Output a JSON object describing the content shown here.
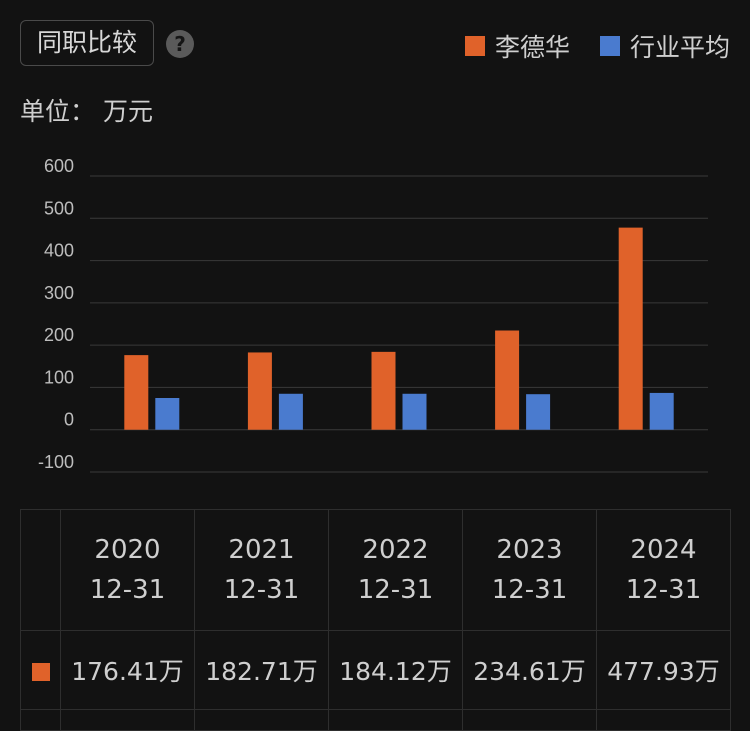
{
  "header": {
    "tab_label": "同职比较",
    "help_icon": "?",
    "legend": [
      {
        "label": "李德华",
        "color": "#e0622a"
      },
      {
        "label": "行业平均",
        "color": "#4a7bcf"
      }
    ]
  },
  "unit_label": "单位：  万元",
  "chart_data": {
    "type": "bar",
    "categories": [
      "2020",
      "2021",
      "2022",
      "2023",
      "2024"
    ],
    "series": [
      {
        "name": "李德华",
        "values": [
          176.41,
          182.71,
          184.12,
          234.61,
          477.93
        ],
        "color": "#e0622a"
      },
      {
        "name": "行业平均",
        "values": [
          75,
          85,
          85,
          84,
          87
        ],
        "color": "#4a7bcf"
      }
    ],
    "ylim": [
      -100,
      600
    ],
    "yticks": [
      -100,
      0,
      100,
      200,
      300,
      400,
      500,
      600
    ],
    "ytick_labels": [
      "-100",
      "0",
      "100",
      "200",
      "300",
      "400",
      "500",
      "600"
    ],
    "grid": true
  },
  "table": {
    "columns": [
      {
        "year": "2020",
        "date": "12-31"
      },
      {
        "year": "2021",
        "date": "12-31"
      },
      {
        "year": "2022",
        "date": "12-31"
      },
      {
        "year": "2023",
        "date": "12-31"
      },
      {
        "year": "2024",
        "date": "12-31"
      }
    ],
    "row": {
      "swatch_color": "#e0622a",
      "values": [
        "176.41万",
        "182.71万",
        "184.12万",
        "234.61万",
        "477.93万"
      ]
    }
  }
}
